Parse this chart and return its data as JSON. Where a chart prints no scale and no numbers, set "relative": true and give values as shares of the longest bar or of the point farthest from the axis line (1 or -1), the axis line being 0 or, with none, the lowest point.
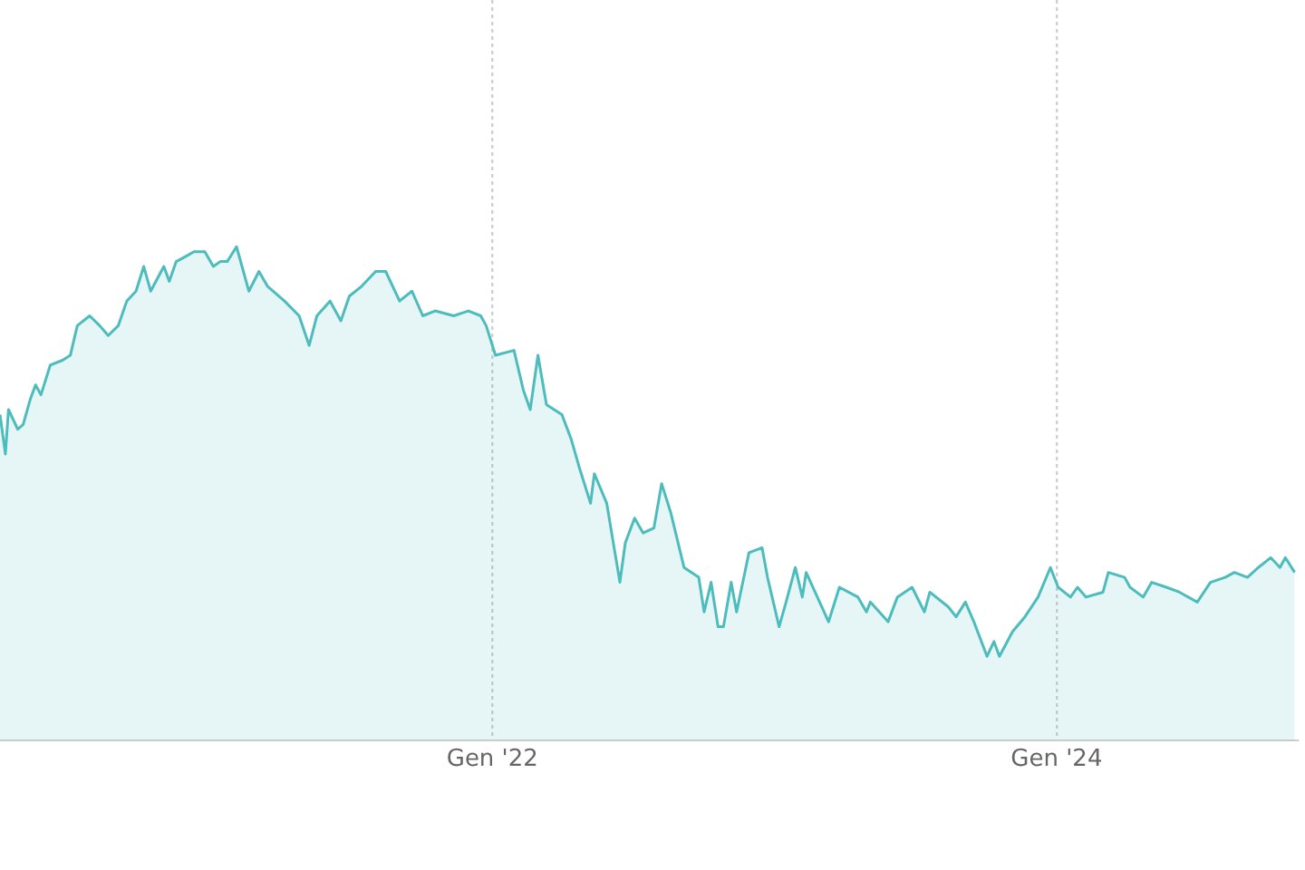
{
  "chart_data": {
    "type": "area",
    "relative": true,
    "grid": "x",
    "tick_labels": "x",
    "xlim": [
      "2020-04-04",
      "2024-11-08"
    ],
    "xticks": [
      {
        "value": "2022-01-01",
        "label": "Gen '22"
      },
      {
        "value": "2024-01-01",
        "label": "Gen '24"
      }
    ],
    "x": [
      "2020-04-04",
      "2020-04-11",
      "2020-04-15",
      "2020-04-27",
      "2020-05-04",
      "2020-05-13",
      "2020-05-20",
      "2020-05-27",
      "2020-06-08",
      "2020-06-24",
      "2020-07-04",
      "2020-07-13",
      "2020-07-29",
      "2020-08-11",
      "2020-08-22",
      "2020-09-04",
      "2020-09-15",
      "2020-09-27",
      "2020-10-07",
      "2020-10-16",
      "2020-11-02",
      "2020-11-09",
      "2020-11-18",
      "2020-11-30",
      "2020-12-11",
      "2020-12-25",
      "2021-01-05",
      "2021-01-14",
      "2021-01-23",
      "2021-02-04",
      "2021-02-20",
      "2021-03-05",
      "2021-03-16",
      "2021-04-07",
      "2021-04-26",
      "2021-05-09",
      "2021-05-19",
      "2021-06-05",
      "2021-06-19",
      "2021-06-30",
      "2021-07-16",
      "2021-08-03",
      "2021-08-16",
      "2021-09-03",
      "2021-09-19",
      "2021-10-03",
      "2021-10-19",
      "2021-11-12",
      "2021-12-01",
      "2021-12-17",
      "2021-12-24",
      "2022-01-05",
      "2022-01-29",
      "2022-02-10",
      "2022-02-19",
      "2022-03-01",
      "2022-03-12",
      "2022-04-01",
      "2022-04-13",
      "2022-04-24",
      "2022-05-08",
      "2022-05-13",
      "2022-05-29",
      "2022-06-15",
      "2022-06-22",
      "2022-07-04",
      "2022-07-15",
      "2022-07-29",
      "2022-08-08",
      "2022-08-20",
      "2022-09-06",
      "2022-09-25",
      "2022-10-02",
      "2022-10-11",
      "2022-10-20",
      "2022-10-27",
      "2022-11-06",
      "2022-11-13",
      "2022-11-29",
      "2022-12-16",
      "2022-12-23",
      "2023-01-07",
      "2023-01-16",
      "2023-01-28",
      "2023-02-06",
      "2023-02-11",
      "2023-03-12",
      "2023-03-26",
      "2023-04-19",
      "2023-04-30",
      "2023-05-05",
      "2023-05-28",
      "2023-06-09",
      "2023-06-28",
      "2023-07-14",
      "2023-07-21",
      "2023-08-14",
      "2023-08-24",
      "2023-09-05",
      "2023-09-16",
      "2023-10-03",
      "2023-10-12",
      "2023-10-19",
      "2023-11-05",
      "2023-11-21",
      "2023-12-08",
      "2023-12-24",
      "2024-01-03",
      "2024-01-19",
      "2024-01-28",
      "2024-02-08",
      "2024-03-01",
      "2024-03-08",
      "2024-03-29",
      "2024-04-05",
      "2024-04-22",
      "2024-05-03",
      "2024-05-22",
      "2024-06-08",
      "2024-07-01",
      "2024-07-18",
      "2024-08-06",
      "2024-08-18",
      "2024-09-04",
      "2024-09-18",
      "2024-10-04",
      "2024-10-16",
      "2024-10-23",
      "2024-11-04"
    ],
    "series": [
      {
        "color": "#4dbcbc",
        "values": [
          0.66,
          0.58,
          0.67,
          0.63,
          0.64,
          0.69,
          0.72,
          0.7,
          0.76,
          0.77,
          0.78,
          0.84,
          0.86,
          0.84,
          0.82,
          0.84,
          0.89,
          0.91,
          0.96,
          0.91,
          0.96,
          0.93,
          0.97,
          0.98,
          0.99,
          0.99,
          0.96,
          0.97,
          0.97,
          1,
          0.91,
          0.95,
          0.92,
          0.89,
          0.86,
          0.8,
          0.86,
          0.89,
          0.85,
          0.9,
          0.92,
          0.95,
          0.95,
          0.89,
          0.91,
          0.86,
          0.87,
          0.86,
          0.87,
          0.86,
          0.84,
          0.78,
          0.79,
          0.71,
          0.67,
          0.78,
          0.68,
          0.66,
          0.61,
          0.55,
          0.48,
          0.54,
          0.48,
          0.32,
          0.4,
          0.45,
          0.42,
          0.43,
          0.52,
          0.46,
          0.35,
          0.33,
          0.26,
          0.32,
          0.23,
          0.23,
          0.32,
          0.26,
          0.38,
          0.39,
          0.33,
          0.23,
          0.28,
          0.35,
          0.29,
          0.34,
          0.24,
          0.31,
          0.29,
          0.26,
          0.28,
          0.24,
          0.29,
          0.31,
          0.26,
          0.3,
          0.27,
          0.25,
          0.28,
          0.24,
          0.17,
          0.2,
          0.17,
          0.22,
          0.25,
          0.29,
          0.35,
          0.31,
          0.29,
          0.31,
          0.29,
          0.3,
          0.34,
          0.33,
          0.31,
          0.29,
          0.32,
          0.31,
          0.3,
          0.28,
          0.32,
          0.33,
          0.34,
          0.33,
          0.35,
          0.37,
          0.35,
          0.37,
          0.34
        ]
      }
    ]
  }
}
